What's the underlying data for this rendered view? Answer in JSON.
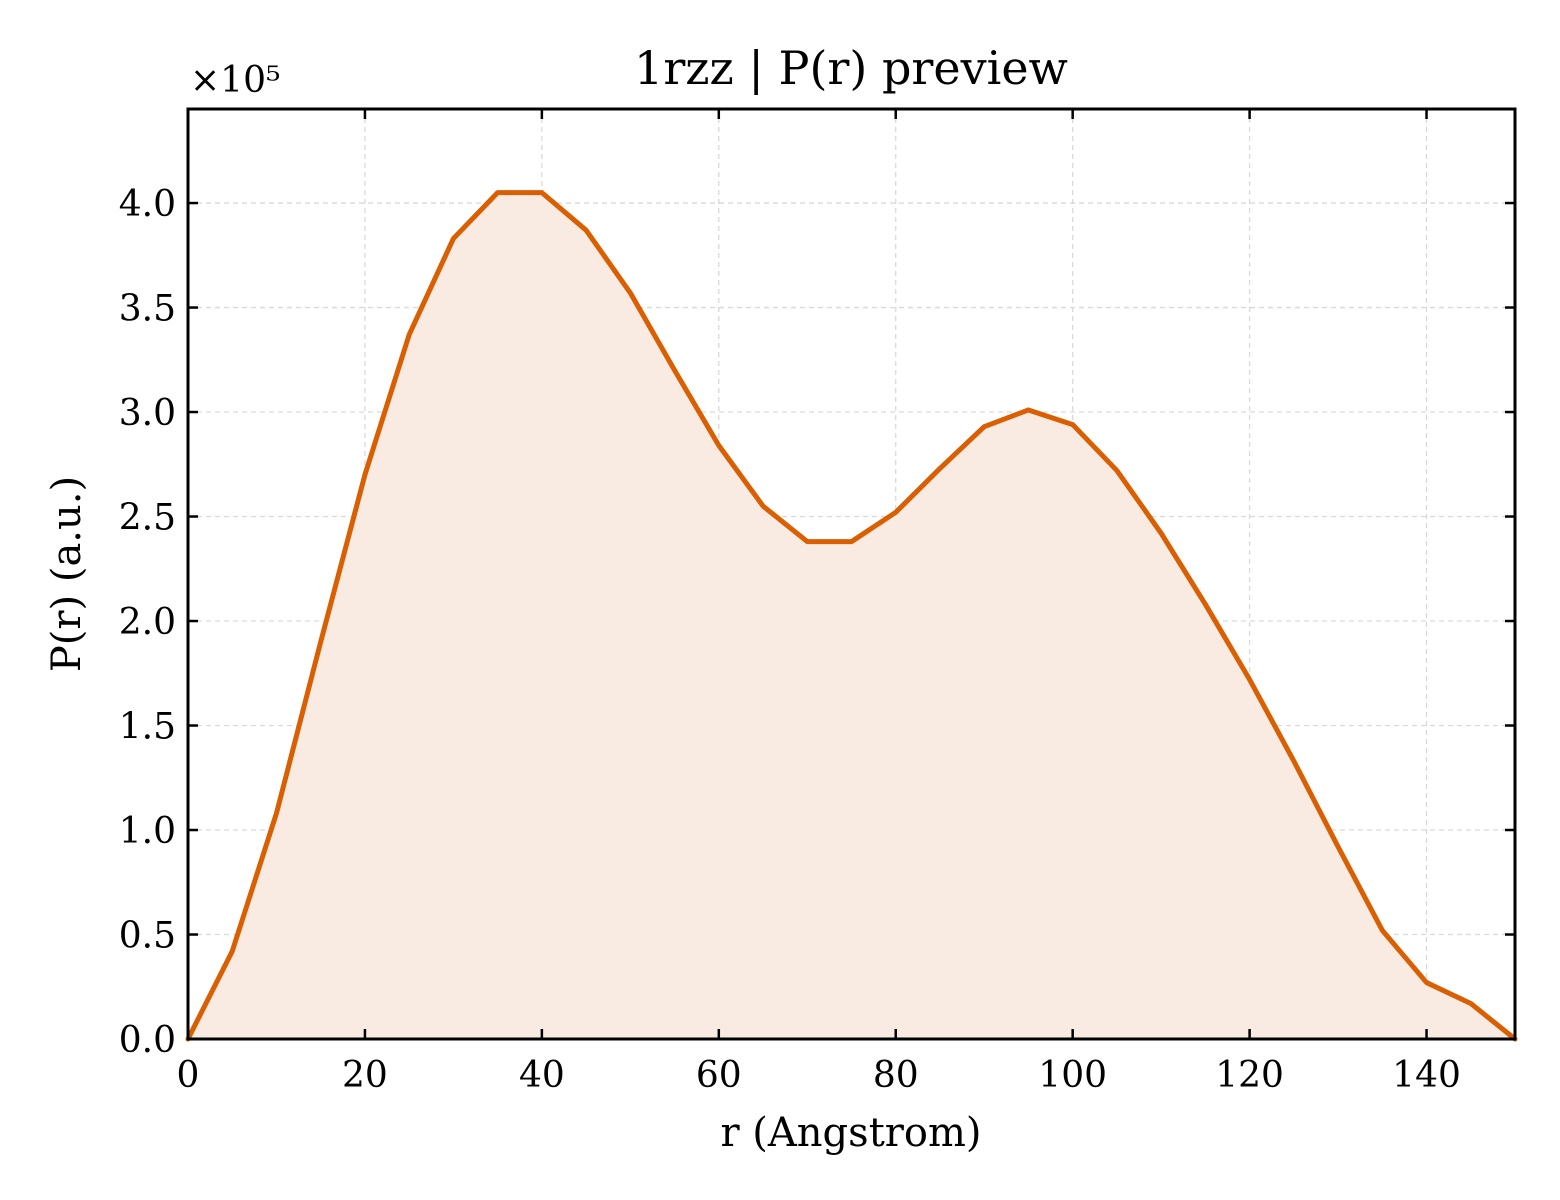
{
  "chart_data": {
    "type": "area",
    "title": "1rzz | P(r) preview",
    "xlabel": "r (Angstrom)",
    "ylabel": "P(r) (a.u.)",
    "y_multiplier": "×10⁵",
    "xlim": [
      0,
      150
    ],
    "ylim": [
      0,
      4.45
    ],
    "x_ticks": [
      0,
      20,
      40,
      60,
      80,
      100,
      120,
      140
    ],
    "x_tick_labels": [
      "0",
      "20",
      "40",
      "60",
      "80",
      "100",
      "120",
      "140"
    ],
    "y_ticks": [
      0.0,
      0.5,
      1.0,
      1.5,
      2.0,
      2.5,
      3.0,
      3.5,
      4.0
    ],
    "y_tick_labels": [
      "0.0",
      "0.5",
      "1.0",
      "1.5",
      "2.0",
      "2.5",
      "3.0",
      "3.5",
      "4.0"
    ],
    "grid": true,
    "legend": "none",
    "colors": {
      "line": "#d95f02",
      "fill": "#f9ebe1",
      "grid": "#d9d9d9",
      "axis": "#000000"
    },
    "series": [
      {
        "x": [
          0,
          5,
          10,
          15,
          20,
          25,
          30,
          35,
          40,
          45,
          50,
          55,
          60,
          65,
          70,
          75,
          80,
          85,
          90,
          95,
          100,
          105,
          110,
          115,
          120,
          125,
          130,
          135,
          140,
          145,
          150
        ],
        "values": [
          0.0,
          0.42,
          1.08,
          1.9,
          2.7,
          3.37,
          3.83,
          4.05,
          4.05,
          3.87,
          3.57,
          3.2,
          2.84,
          2.55,
          2.38,
          2.38,
          2.52,
          2.73,
          2.93,
          3.01,
          2.94,
          2.72,
          2.42,
          2.08,
          1.72,
          1.33,
          0.92,
          0.52,
          0.27,
          0.17,
          0.0
        ]
      }
    ]
  }
}
